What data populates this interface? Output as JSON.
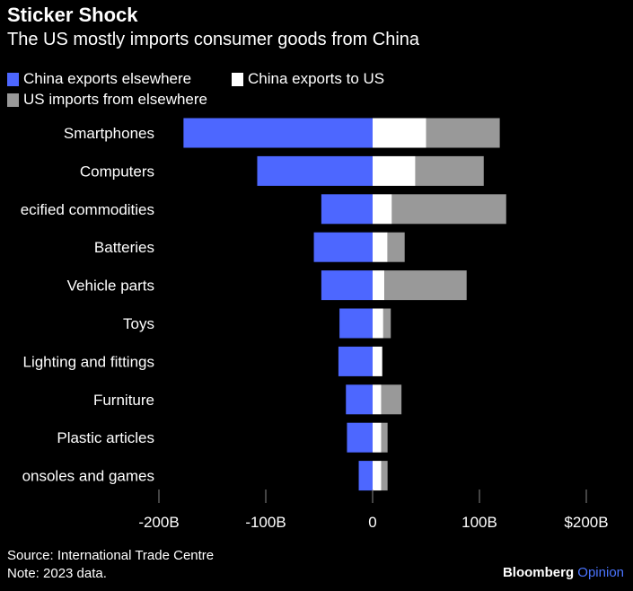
{
  "chart_data": {
    "type": "bar",
    "orientation": "horizontal-stacked-diverging",
    "title": "Sticker Shock",
    "subtitle": "The US mostly imports consumer goods from China",
    "categories": [
      "Smartphones",
      "Computers",
      "ecified commodities",
      "Batteries",
      "Vehicle parts",
      "Toys",
      "Lighting and fittings",
      "Furniture",
      "Plastic articles",
      "onsoles and games"
    ],
    "series": [
      {
        "name": "China exports elsewhere",
        "color": "#4d67ff",
        "values": [
          -177,
          -108,
          -48,
          -55,
          -48,
          -31,
          -32,
          -25,
          -24,
          -13
        ]
      },
      {
        "name": "China exports to US",
        "color": "#ffffff",
        "values": [
          50,
          40,
          18,
          14,
          11,
          10,
          9,
          8,
          8,
          8
        ]
      },
      {
        "name": "US imports from elsewhere",
        "color": "#999999",
        "values": [
          69,
          64,
          107,
          16,
          77,
          7,
          0,
          19,
          6,
          6
        ]
      }
    ],
    "xlim": [
      -200,
      200
    ],
    "xticks": [
      -200,
      -100,
      0,
      100,
      200
    ],
    "xtick_labels": [
      "-200B",
      "-100B",
      "0",
      "100B",
      "$200B"
    ],
    "legend_position": "top-left"
  },
  "footer": {
    "source": "Source: International Trade Centre",
    "note": "Note: 2023 data.",
    "brand": "Bloomberg",
    "brand_suffix": "Opinion"
  }
}
